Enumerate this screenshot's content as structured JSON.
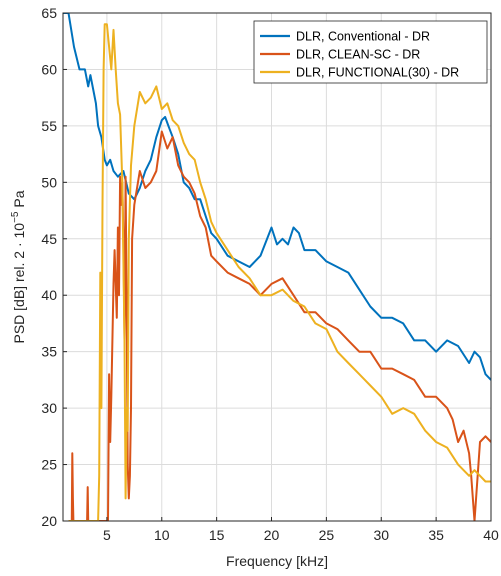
{
  "chart_data": {
    "type": "line",
    "title": "",
    "xlabel": "Frequency [kHz]",
    "ylabel_main": "PSD [dB] rel. 2 · 10",
    "ylabel_exp": "−5",
    "ylabel_unit": " Pa",
    "xlim": [
      1,
      40
    ],
    "ylim": [
      20,
      65
    ],
    "grid": true,
    "legend_position": "top-right",
    "x_ticks": [
      5,
      10,
      15,
      20,
      25,
      30,
      35,
      40
    ],
    "x_tick_labels": [
      "5",
      "10",
      "15",
      "20",
      "25",
      "30",
      "35",
      "40"
    ],
    "y_ticks": [
      20,
      25,
      30,
      35,
      40,
      45,
      50,
      55,
      60,
      65
    ],
    "y_tick_labels": [
      "20",
      "25",
      "30",
      "35",
      "40",
      "45",
      "50",
      "55",
      "60",
      "65"
    ],
    "series": [
      {
        "name": "DLR, Conventional - DR",
        "color": "#0072BD",
        "x": [
          1,
          1.5,
          2,
          2.5,
          3,
          3.3,
          3.5,
          3.8,
          4,
          4.2,
          4.5,
          4.8,
          5,
          5.3,
          5.6,
          6,
          6.5,
          7,
          7.5,
          8,
          8.5,
          9,
          9.5,
          10,
          10.3,
          10.6,
          11,
          11.5,
          12,
          12.5,
          13,
          13.5,
          14,
          14.5,
          15,
          16,
          17,
          18,
          19,
          20,
          20.5,
          21,
          21.5,
          22,
          22.5,
          23,
          24,
          25,
          26,
          27,
          28,
          29,
          30,
          31,
          32,
          33,
          34,
          35,
          36,
          37,
          38,
          38.5,
          39,
          39.5,
          40
        ],
        "values": [
          65,
          65,
          62,
          60,
          60,
          58.5,
          59.5,
          58,
          57,
          55,
          54,
          52,
          51.5,
          52,
          51,
          50.5,
          51,
          49,
          48.5,
          49.5,
          51,
          52,
          54,
          55.5,
          55.8,
          55,
          54,
          52.5,
          50,
          49.5,
          48.5,
          48.5,
          47,
          45.5,
          45,
          43.5,
          43,
          42.5,
          43.5,
          46,
          44.5,
          45,
          44.5,
          46,
          45.5,
          44,
          44,
          43,
          42.5,
          42,
          40.5,
          39,
          38,
          38,
          37.5,
          36,
          36,
          35,
          36,
          35.5,
          34,
          35,
          34.5,
          33,
          32.5
        ]
      },
      {
        "name": "DLR, CLEAN-SC - DR",
        "color": "#D95319",
        "x": [
          1.8,
          1.85,
          1.9,
          1.95,
          2.1,
          2.2,
          3.2,
          3.25,
          3.3,
          5.1,
          5.2,
          5.3,
          5.4,
          5.5,
          5.6,
          5.7,
          5.9,
          6.0,
          6.1,
          6.2,
          6.3,
          6.4,
          6.5,
          6.6,
          6.7,
          6.8,
          6.9,
          7.0,
          7.1,
          7.2,
          7.3,
          7.5,
          8,
          8.5,
          9,
          9.5,
          10,
          10.5,
          11,
          11.5,
          12,
          12.5,
          13,
          13.5,
          14,
          14.5,
          15,
          16,
          17,
          18,
          19,
          20,
          21,
          22,
          23,
          24,
          25,
          26,
          27,
          28,
          29,
          30,
          31,
          32,
          33,
          34,
          35,
          36,
          36.5,
          37,
          37.5,
          38,
          38.2,
          38.5,
          39,
          39.5,
          40
        ],
        "values": [
          20,
          26,
          22,
          20,
          20,
          20,
          20,
          23,
          20,
          20,
          33,
          27,
          31,
          36,
          41,
          44,
          38,
          46,
          40,
          50.5,
          48,
          50,
          45,
          36,
          50.5,
          38,
          25,
          22,
          24,
          30,
          45,
          48,
          51,
          49.5,
          50,
          51,
          54.5,
          53,
          54,
          51.5,
          50.5,
          50,
          49,
          47,
          46,
          43.5,
          43,
          42,
          41.5,
          41,
          40,
          41,
          41.5,
          40,
          38.5,
          38.5,
          37.5,
          37,
          36,
          35,
          35,
          33.5,
          33.5,
          33,
          32.5,
          31,
          31,
          30,
          29,
          27,
          28,
          26,
          24,
          20,
          27,
          27.5,
          27
        ]
      },
      {
        "name": "DLR, FUNCTIONAL(30) - DR",
        "color": "#EDB120",
        "x": [
          1.5,
          2,
          2.5,
          3,
          3.5,
          3.7,
          3.8,
          4.0,
          4.1,
          4.2,
          4.3,
          4.4,
          4.5,
          4.6,
          4.7,
          4.8,
          5.0,
          5.2,
          5.4,
          5.6,
          5.8,
          6,
          6.2,
          6.4,
          6.6,
          6.7,
          6.8,
          6.9,
          7.0,
          7.2,
          7.5,
          8,
          8.5,
          9,
          9.5,
          10,
          10.5,
          11,
          11.5,
          12,
          12.5,
          13,
          13.5,
          14,
          14.5,
          15,
          16,
          17,
          18,
          19,
          20,
          21,
          22,
          23,
          24,
          25,
          26,
          27,
          28,
          29,
          30,
          31,
          32,
          33,
          34,
          35,
          36,
          37,
          38,
          38.5,
          39,
          39.5,
          40
        ],
        "values": [
          20,
          20,
          20,
          20,
          20,
          20,
          20,
          20,
          20,
          20,
          24,
          42,
          30,
          48,
          60,
          64,
          64,
          62,
          60,
          63.5,
          60,
          57,
          56,
          50,
          36,
          22,
          30,
          28,
          45,
          51.5,
          55,
          58,
          57,
          57.5,
          58.5,
          56.5,
          57,
          55.5,
          55,
          53.5,
          52.5,
          52,
          50,
          48.5,
          46.5,
          45.5,
          44,
          42.5,
          41.5,
          40,
          40,
          40.5,
          39.5,
          39,
          37.5,
          37,
          35,
          34,
          33,
          32,
          31,
          29.5,
          30,
          29.5,
          28,
          27,
          26.5,
          25,
          24,
          24.5,
          24,
          23.5,
          23.5
        ]
      }
    ]
  }
}
